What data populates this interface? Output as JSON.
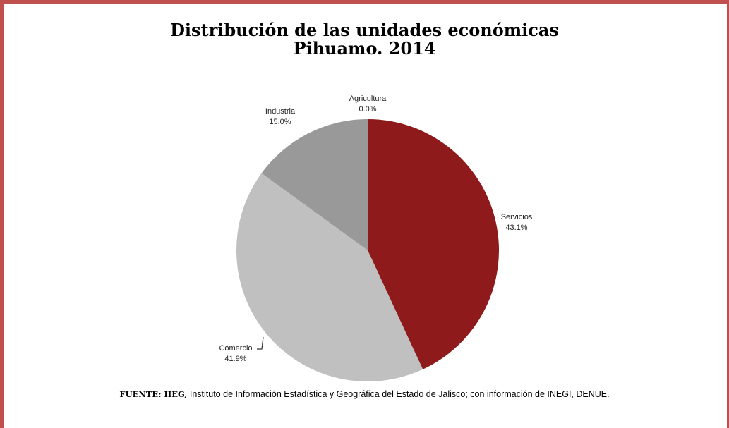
{
  "title_line1": "Distribución de las unidades económicas",
  "title_line2": "Pihuamo. 2014",
  "source_bold": "FUENTE: IIEG,",
  "source_text": " Instituto de Información Estadística y Geográfica del Estado de Jalisco; con información de INEGI, DENUE.",
  "colors": {
    "frame": "#c0504d",
    "servicios": "#8e1a1b",
    "comercio": "#c0c0c0",
    "industria": "#9a9999",
    "agricultura": "#7f7f7f"
  },
  "chart_data": {
    "type": "pie",
    "title": "",
    "slices": [
      {
        "label": "Agricultura",
        "value": 0.0,
        "display": "0.0%",
        "color": "#7f7f7f"
      },
      {
        "label": "Servicios",
        "value": 43.1,
        "display": "43.1%",
        "color": "#8e1a1b"
      },
      {
        "label": "Comercio",
        "value": 41.9,
        "display": "41.9%",
        "color": "#c0c0c0"
      },
      {
        "label": "Industria",
        "value": 15.0,
        "display": "15.0%",
        "color": "#9a9999"
      }
    ],
    "start": "12 o'clock",
    "direction": "clockwise",
    "legend": "none"
  }
}
